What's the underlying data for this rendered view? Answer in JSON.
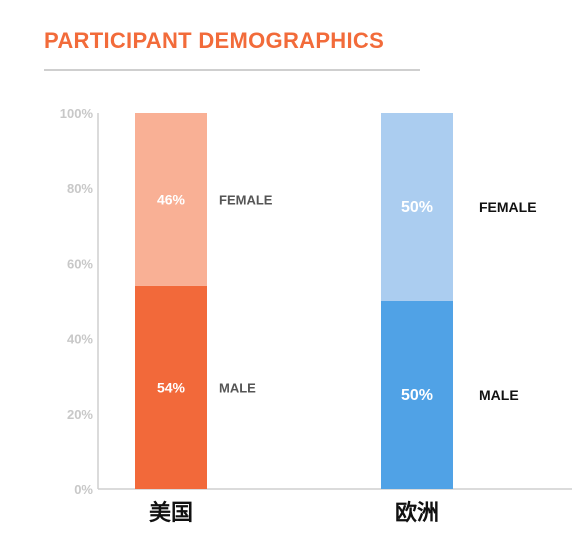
{
  "title": "PARTICIPANT DEMOGRAPHICS",
  "colors": {
    "title": "#F26B3A",
    "us_male": "#F2693A",
    "us_female": "#F9B095",
    "eu_male": "#50A2E6",
    "eu_female": "#ABCDF0"
  },
  "chart_data": {
    "type": "bar",
    "stacked": true,
    "categories": [
      "美国",
      "欧洲"
    ],
    "series": [
      {
        "name": "MALE",
        "values": [
          54,
          50
        ]
      },
      {
        "name": "FEMALE",
        "values": [
          46,
          50
        ]
      }
    ],
    "data_labels": {
      "MALE": [
        "54%",
        "50%"
      ],
      "FEMALE": [
        "46%",
        "50%"
      ]
    },
    "yticks": [
      "0%",
      "20%",
      "40%",
      "60%",
      "80%",
      "100%"
    ],
    "ylim": [
      0,
      100
    ],
    "xlabel": "",
    "ylabel": "",
    "grid": false,
    "legend": "labels beside each bar segment"
  }
}
